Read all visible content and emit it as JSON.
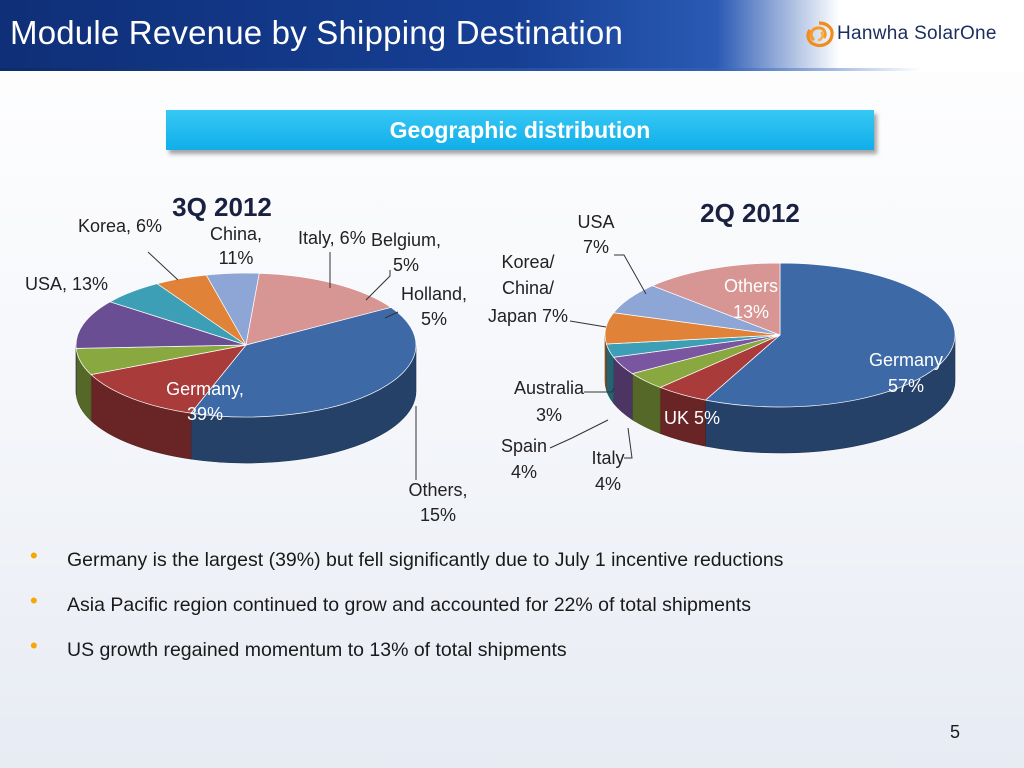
{
  "title": "Module Revenue by Shipping Destination",
  "logo_text": "Hanwha SolarOne",
  "banner": "Geographic distribution",
  "page_number": "5",
  "colors": {
    "germany": "#3e69a7",
    "usa": "#a93b3b",
    "korea": "#89a83f",
    "china": "#6a4e93",
    "italy": "#3c9fb6",
    "belgium": "#e08238",
    "holland": "#8ea6d6",
    "others": "#d79593",
    "uk": "#a93b3b",
    "spain": "#7a55a0"
  },
  "bullets": [
    "Germany is the largest (39%) but fell significantly due to July 1 incentive reductions",
    "Asia Pacific region continued to grow and accounted for 22% of total shipments",
    "US growth regained momentum to 13% of total shipments"
  ],
  "chart_data": [
    {
      "type": "pie",
      "title": "3Q 2012",
      "unit": "%",
      "labels": [
        "Germany",
        "USA",
        "Korea",
        "China",
        "Italy",
        "Belgium",
        "Holland",
        "Others"
      ],
      "values": [
        39,
        13,
        6,
        11,
        6,
        5,
        5,
        15
      ],
      "label_text": [
        [
          "Germany,",
          "39%"
        ],
        [
          "USA, 13%"
        ],
        [
          "Korea, 6%"
        ],
        [
          "China,",
          "11%"
        ],
        [
          "Italy, 6%"
        ],
        [
          "Belgium,",
          "5%"
        ],
        [
          "Holland,",
          "5%"
        ],
        [
          "Others,",
          "15%"
        ]
      ]
    },
    {
      "type": "pie",
      "title": "2Q 2012",
      "unit": "%",
      "labels": [
        "Germany",
        "UK",
        "Italy",
        "Spain",
        "Australia",
        "Korea/China/Japan",
        "USA",
        "Others"
      ],
      "values": [
        57,
        5,
        4,
        4,
        3,
        7,
        7,
        13
      ],
      "label_text": [
        [
          "Germany",
          "57%"
        ],
        [
          "UK 5%"
        ],
        [
          "Italy",
          "4%"
        ],
        [
          "Spain",
          "4%"
        ],
        [
          "Australia",
          "3%"
        ],
        [
          "Korea/",
          "China/",
          "Japan 7%"
        ],
        [
          "USA",
          "7%"
        ],
        [
          "Others",
          "13%"
        ]
      ]
    }
  ]
}
